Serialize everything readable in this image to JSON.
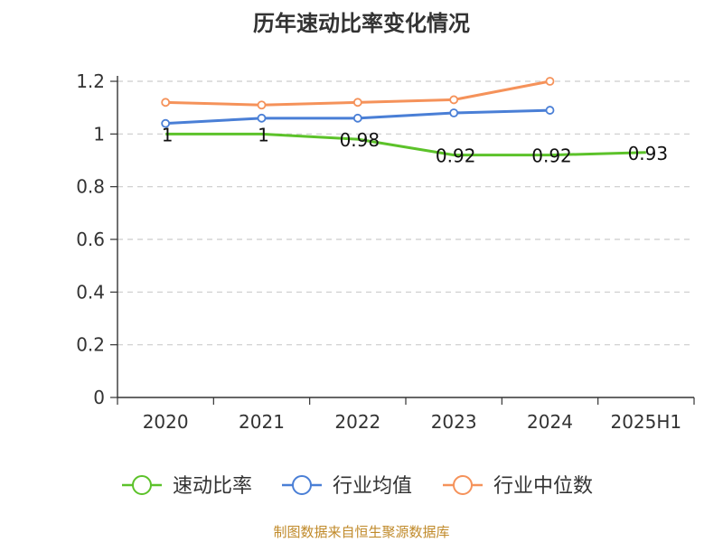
{
  "chart_data": {
    "type": "line",
    "title": "历年速动比率变化情况",
    "categories": [
      "2020",
      "2021",
      "2022",
      "2023",
      "2024",
      "2025H1"
    ],
    "ylim": [
      0,
      1.2
    ],
    "yticks": [
      "0",
      "0.2",
      "0.4",
      "0.6",
      "0.8",
      "1",
      "1.2"
    ],
    "grid": true,
    "legend_position": "bottom",
    "series": [
      {
        "name": "速动比率",
        "color": "#5cc22a",
        "values": [
          1,
          1,
          0.98,
          0.92,
          0.92,
          0.93
        ],
        "labels": [
          "1",
          "1",
          "0.98",
          "0.92",
          "0.92",
          "0.93"
        ]
      },
      {
        "name": "行业均值",
        "color": "#4a7fd6",
        "values": [
          1.04,
          1.06,
          1.06,
          1.08,
          1.09,
          null
        ]
      },
      {
        "name": "行业中位数",
        "color": "#f5925a",
        "values": [
          1.12,
          1.11,
          1.12,
          1.13,
          1.2,
          null
        ]
      }
    ]
  },
  "source": "制图数据来自恒生聚源数据库"
}
